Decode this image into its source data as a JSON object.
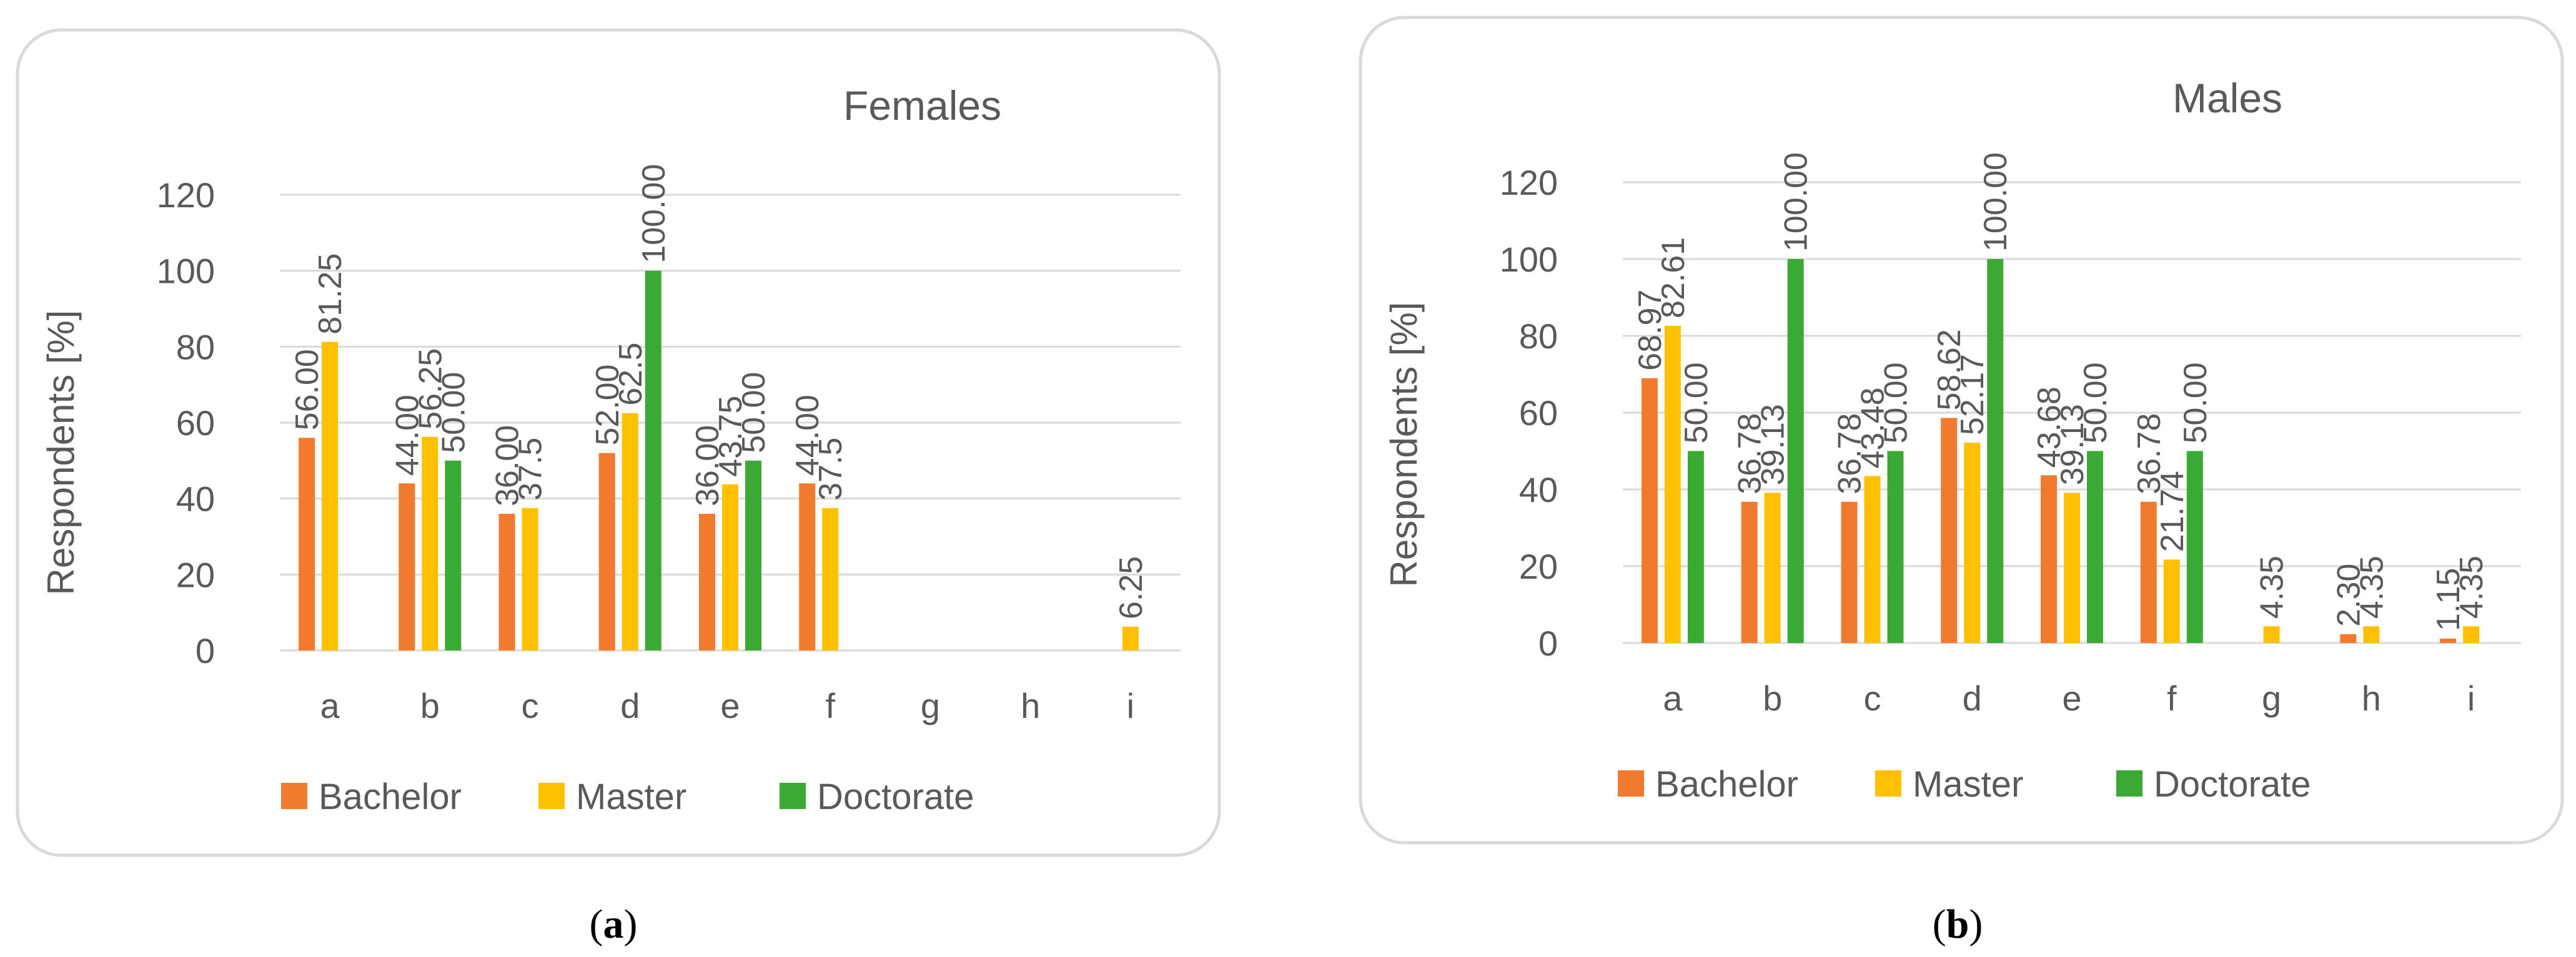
{
  "chart_data": [
    {
      "type": "bar",
      "title": "Females",
      "xlabel": "",
      "ylabel": "Respondents [%]",
      "ylim": [
        0,
        120
      ],
      "yticks": [
        0,
        20,
        40,
        60,
        80,
        100,
        120
      ],
      "categories": [
        "a",
        "b",
        "c",
        "d",
        "e",
        "f",
        "g",
        "h",
        "i"
      ],
      "series": [
        {
          "name": "Bachelor",
          "color": "#F27A2E",
          "values": [
            56.0,
            44.0,
            36.0,
            52.0,
            36.0,
            44.0,
            null,
            null,
            null
          ],
          "labels": [
            "56.00",
            "44.00",
            "36.00",
            "52.00",
            "36.00",
            "44.00",
            "",
            "",
            ""
          ]
        },
        {
          "name": "Master",
          "color": "#FFC000",
          "values": [
            81.25,
            56.25,
            37.5,
            62.5,
            43.75,
            37.5,
            null,
            null,
            6.25
          ],
          "labels": [
            "81.25",
            "56.25",
            "37.5",
            "62.5",
            "43.75",
            "37.5",
            "",
            "",
            "6.25"
          ]
        },
        {
          "name": "Doctorate",
          "color": "#3AAA35",
          "values": [
            null,
            50.0,
            null,
            100.0,
            50.0,
            null,
            null,
            null,
            null
          ],
          "labels": [
            "",
            "50.00",
            "",
            "100.00",
            "50.00",
            "",
            "",
            "",
            ""
          ]
        }
      ],
      "legend": "bottom",
      "caption": {
        "open": "(",
        "letter": "a",
        "close": ")"
      }
    },
    {
      "type": "bar",
      "title": "Males",
      "xlabel": "",
      "ylabel": "Respondents [%]",
      "ylim": [
        0,
        120
      ],
      "yticks": [
        0,
        20,
        40,
        60,
        80,
        100,
        120
      ],
      "categories": [
        "a",
        "b",
        "c",
        "d",
        "e",
        "f",
        "g",
        "h",
        "i"
      ],
      "series": [
        {
          "name": "Bachelor",
          "color": "#F27A2E",
          "values": [
            68.97,
            36.78,
            36.78,
            58.62,
            43.68,
            36.78,
            null,
            2.3,
            1.15
          ],
          "labels": [
            "68.97",
            "36.78",
            "36.78",
            "58.62",
            "43.68",
            "36.78",
            "",
            "2.30",
            "1.15"
          ]
        },
        {
          "name": "Master",
          "color": "#FFC000",
          "values": [
            82.61,
            39.13,
            43.48,
            52.17,
            39.13,
            21.74,
            4.35,
            4.35,
            4.35
          ],
          "labels": [
            "82.61",
            "39.13",
            "43.48",
            "52.17",
            "39.13",
            "21.74",
            "4.35",
            "4.35",
            "4.35"
          ]
        },
        {
          "name": "Doctorate",
          "color": "#3AAA35",
          "values": [
            50.0,
            100.0,
            50.0,
            100.0,
            50.0,
            50.0,
            null,
            null,
            null
          ],
          "labels": [
            "50.00",
            "100.00",
            "50.00",
            "100.00",
            "50.00",
            "50.00",
            "",
            "",
            ""
          ]
        }
      ],
      "legend": "bottom",
      "caption": {
        "open": "(",
        "letter": "b",
        "close": ")"
      }
    }
  ]
}
